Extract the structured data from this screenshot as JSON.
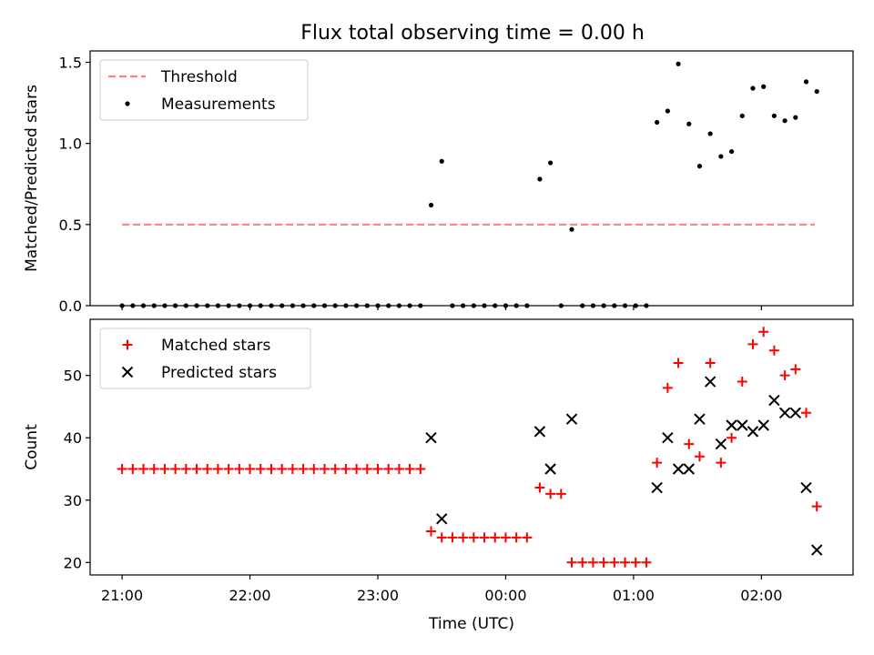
{
  "title": "Flux total observing time = 0.00 h",
  "colors": {
    "threshold": "#ff7f7f",
    "measurement": "#000000",
    "matched": "#ff0000",
    "predicted": "#000000"
  },
  "chart_data": [
    {
      "type": "scatter",
      "ylabel": "Matched/Predicted stars",
      "xlim": [
        "20:45",
        "02:43"
      ],
      "ylim": [
        0,
        1.57
      ],
      "y_ticks": [
        "0.0",
        "0.5",
        "1.0",
        "1.5"
      ],
      "legend": {
        "placement": "top-left",
        "entries": [
          "Threshold",
          "Measurements"
        ]
      },
      "threshold": {
        "name": "Threshold",
        "y": 0.5,
        "x_range": [
          "21:00",
          "02:25"
        ],
        "style": "dashed"
      },
      "series": [
        {
          "name": "Measurements",
          "points": [
            [
              "21:00",
              0
            ],
            [
              "21:05",
              0
            ],
            [
              "21:10",
              0
            ],
            [
              "21:15",
              0
            ],
            [
              "21:20",
              0
            ],
            [
              "21:25",
              0
            ],
            [
              "21:30",
              0
            ],
            [
              "21:35",
              0
            ],
            [
              "21:40",
              0
            ],
            [
              "21:45",
              0
            ],
            [
              "21:50",
              0
            ],
            [
              "21:55",
              0
            ],
            [
              "22:00",
              0
            ],
            [
              "22:05",
              0
            ],
            [
              "22:10",
              0
            ],
            [
              "22:15",
              0
            ],
            [
              "22:20",
              0
            ],
            [
              "22:25",
              0
            ],
            [
              "22:30",
              0
            ],
            [
              "22:35",
              0
            ],
            [
              "22:40",
              0
            ],
            [
              "22:45",
              0
            ],
            [
              "22:50",
              0
            ],
            [
              "22:55",
              0
            ],
            [
              "23:00",
              0
            ],
            [
              "23:05",
              0
            ],
            [
              "23:10",
              0
            ],
            [
              "23:15",
              0
            ],
            [
              "23:20",
              0
            ],
            [
              "23:25",
              0.62
            ],
            [
              "23:30",
              0.89
            ],
            [
              "23:35",
              0
            ],
            [
              "23:40",
              0
            ],
            [
              "23:45",
              0
            ],
            [
              "23:50",
              0
            ],
            [
              "23:55",
              0
            ],
            [
              "00:00",
              0
            ],
            [
              "00:05",
              0
            ],
            [
              "00:10",
              0
            ],
            [
              "00:16",
              0.78
            ],
            [
              "00:21",
              0.88
            ],
            [
              "00:26",
              0
            ],
            [
              "00:31",
              0.47
            ],
            [
              "00:36",
              0
            ],
            [
              "00:41",
              0
            ],
            [
              "00:46",
              0
            ],
            [
              "00:51",
              0
            ],
            [
              "00:56",
              0
            ],
            [
              "01:01",
              0
            ],
            [
              "01:06",
              0
            ],
            [
              "01:11",
              1.13
            ],
            [
              "01:16",
              1.2
            ],
            [
              "01:21",
              1.49
            ],
            [
              "01:26",
              1.12
            ],
            [
              "01:31",
              0.86
            ],
            [
              "01:36",
              1.06
            ],
            [
              "01:41",
              0.92
            ],
            [
              "01:46",
              0.95
            ],
            [
              "01:51",
              1.17
            ],
            [
              "01:56",
              1.34
            ],
            [
              "02:01",
              1.35
            ],
            [
              "02:06",
              1.17
            ],
            [
              "02:11",
              1.14
            ],
            [
              "02:16",
              1.16
            ],
            [
              "02:21",
              1.38
            ],
            [
              "02:26",
              1.32
            ]
          ]
        }
      ]
    },
    {
      "type": "scatter",
      "xlabel": "Time (UTC)",
      "ylabel": "Count",
      "xlim": [
        "20:45",
        "02:43"
      ],
      "ylim": [
        18,
        59
      ],
      "x_ticks": [
        "21:00",
        "22:00",
        "23:00",
        "00:00",
        "01:00",
        "02:00"
      ],
      "y_ticks": [
        "20",
        "30",
        "40",
        "50"
      ],
      "legend": {
        "placement": "top-left",
        "entries": [
          "Matched stars",
          "Predicted stars"
        ]
      },
      "series": [
        {
          "name": "Matched stars",
          "marker": "+",
          "points": [
            [
              "21:00",
              35
            ],
            [
              "21:05",
              35
            ],
            [
              "21:10",
              35
            ],
            [
              "21:15",
              35
            ],
            [
              "21:20",
              35
            ],
            [
              "21:25",
              35
            ],
            [
              "21:30",
              35
            ],
            [
              "21:35",
              35
            ],
            [
              "21:40",
              35
            ],
            [
              "21:45",
              35
            ],
            [
              "21:50",
              35
            ],
            [
              "21:55",
              35
            ],
            [
              "22:00",
              35
            ],
            [
              "22:05",
              35
            ],
            [
              "22:10",
              35
            ],
            [
              "22:15",
              35
            ],
            [
              "22:20",
              35
            ],
            [
              "22:25",
              35
            ],
            [
              "22:30",
              35
            ],
            [
              "22:35",
              35
            ],
            [
              "22:40",
              35
            ],
            [
              "22:45",
              35
            ],
            [
              "22:50",
              35
            ],
            [
              "22:55",
              35
            ],
            [
              "23:00",
              35
            ],
            [
              "23:05",
              35
            ],
            [
              "23:10",
              35
            ],
            [
              "23:15",
              35
            ],
            [
              "23:20",
              35
            ],
            [
              "23:25",
              25
            ],
            [
              "23:30",
              24
            ],
            [
              "23:35",
              24
            ],
            [
              "23:40",
              24
            ],
            [
              "23:45",
              24
            ],
            [
              "23:50",
              24
            ],
            [
              "23:55",
              24
            ],
            [
              "00:00",
              24
            ],
            [
              "00:05",
              24
            ],
            [
              "00:10",
              24
            ],
            [
              "00:16",
              32
            ],
            [
              "00:21",
              31
            ],
            [
              "00:26",
              31
            ],
            [
              "00:31",
              20
            ],
            [
              "00:36",
              20
            ],
            [
              "00:41",
              20
            ],
            [
              "00:46",
              20
            ],
            [
              "00:51",
              20
            ],
            [
              "00:56",
              20
            ],
            [
              "01:01",
              20
            ],
            [
              "01:06",
              20
            ],
            [
              "01:11",
              36
            ],
            [
              "01:16",
              48
            ],
            [
              "01:21",
              52
            ],
            [
              "01:26",
              39
            ],
            [
              "01:31",
              37
            ],
            [
              "01:36",
              52
            ],
            [
              "01:41",
              36
            ],
            [
              "01:46",
              40
            ],
            [
              "01:51",
              49
            ],
            [
              "01:56",
              55
            ],
            [
              "02:01",
              57
            ],
            [
              "02:06",
              54
            ],
            [
              "02:11",
              50
            ],
            [
              "02:16",
              51
            ],
            [
              "02:21",
              44
            ],
            [
              "02:26",
              29
            ]
          ]
        },
        {
          "name": "Predicted stars",
          "marker": "x",
          "points": [
            [
              "23:25",
              40
            ],
            [
              "23:30",
              27
            ],
            [
              "00:16",
              41
            ],
            [
              "00:21",
              35
            ],
            [
              "00:31",
              43
            ],
            [
              "01:11",
              32
            ],
            [
              "01:16",
              40
            ],
            [
              "01:21",
              35
            ],
            [
              "01:26",
              35
            ],
            [
              "01:31",
              43
            ],
            [
              "01:36",
              49
            ],
            [
              "01:41",
              39
            ],
            [
              "01:46",
              42
            ],
            [
              "01:51",
              42
            ],
            [
              "01:56",
              41
            ],
            [
              "02:01",
              42
            ],
            [
              "02:06",
              46
            ],
            [
              "02:11",
              44
            ],
            [
              "02:16",
              44
            ],
            [
              "02:21",
              32
            ],
            [
              "02:26",
              22
            ]
          ]
        }
      ]
    }
  ]
}
